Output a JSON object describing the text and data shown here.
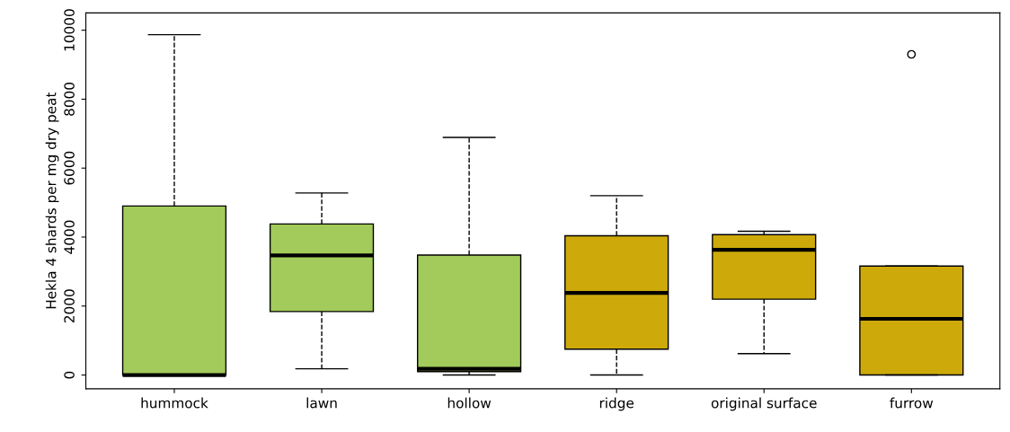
{
  "chart_data": {
    "type": "box",
    "ylabel": "Hekla 4 shards per mg dry peat",
    "categories": [
      "hummock",
      "lawn",
      "hollow",
      "ridge",
      "original surface",
      "furrow"
    ],
    "colors": [
      "#a2cb5b",
      "#a2cb5b",
      "#a2cb5b",
      "#cdaa0a",
      "#cdaa0a",
      "#cdaa0a"
    ],
    "boxes": [
      {
        "low": 0,
        "q1": 0,
        "median": 0,
        "q3": 4900,
        "high": 9870
      },
      {
        "low": 180,
        "q1": 1840,
        "median": 3470,
        "q3": 4380,
        "high": 5280
      },
      {
        "low": 0,
        "q1": 100,
        "median": 180,
        "q3": 3480,
        "high": 6890
      },
      {
        "low": 0,
        "q1": 750,
        "median": 2380,
        "q3": 4040,
        "high": 5200
      },
      {
        "low": 620,
        "q1": 2200,
        "median": 3630,
        "q3": 4070,
        "high": 4170
      },
      {
        "low": 0,
        "q1": 0,
        "median": 1630,
        "q3": 3160,
        "high": 3160,
        "outliers": [
          9300
        ]
      }
    ],
    "ylim": [
      -400,
      10500
    ],
    "yticks": [
      0,
      2000,
      4000,
      6000,
      8000,
      10000
    ],
    "grid": false
  }
}
